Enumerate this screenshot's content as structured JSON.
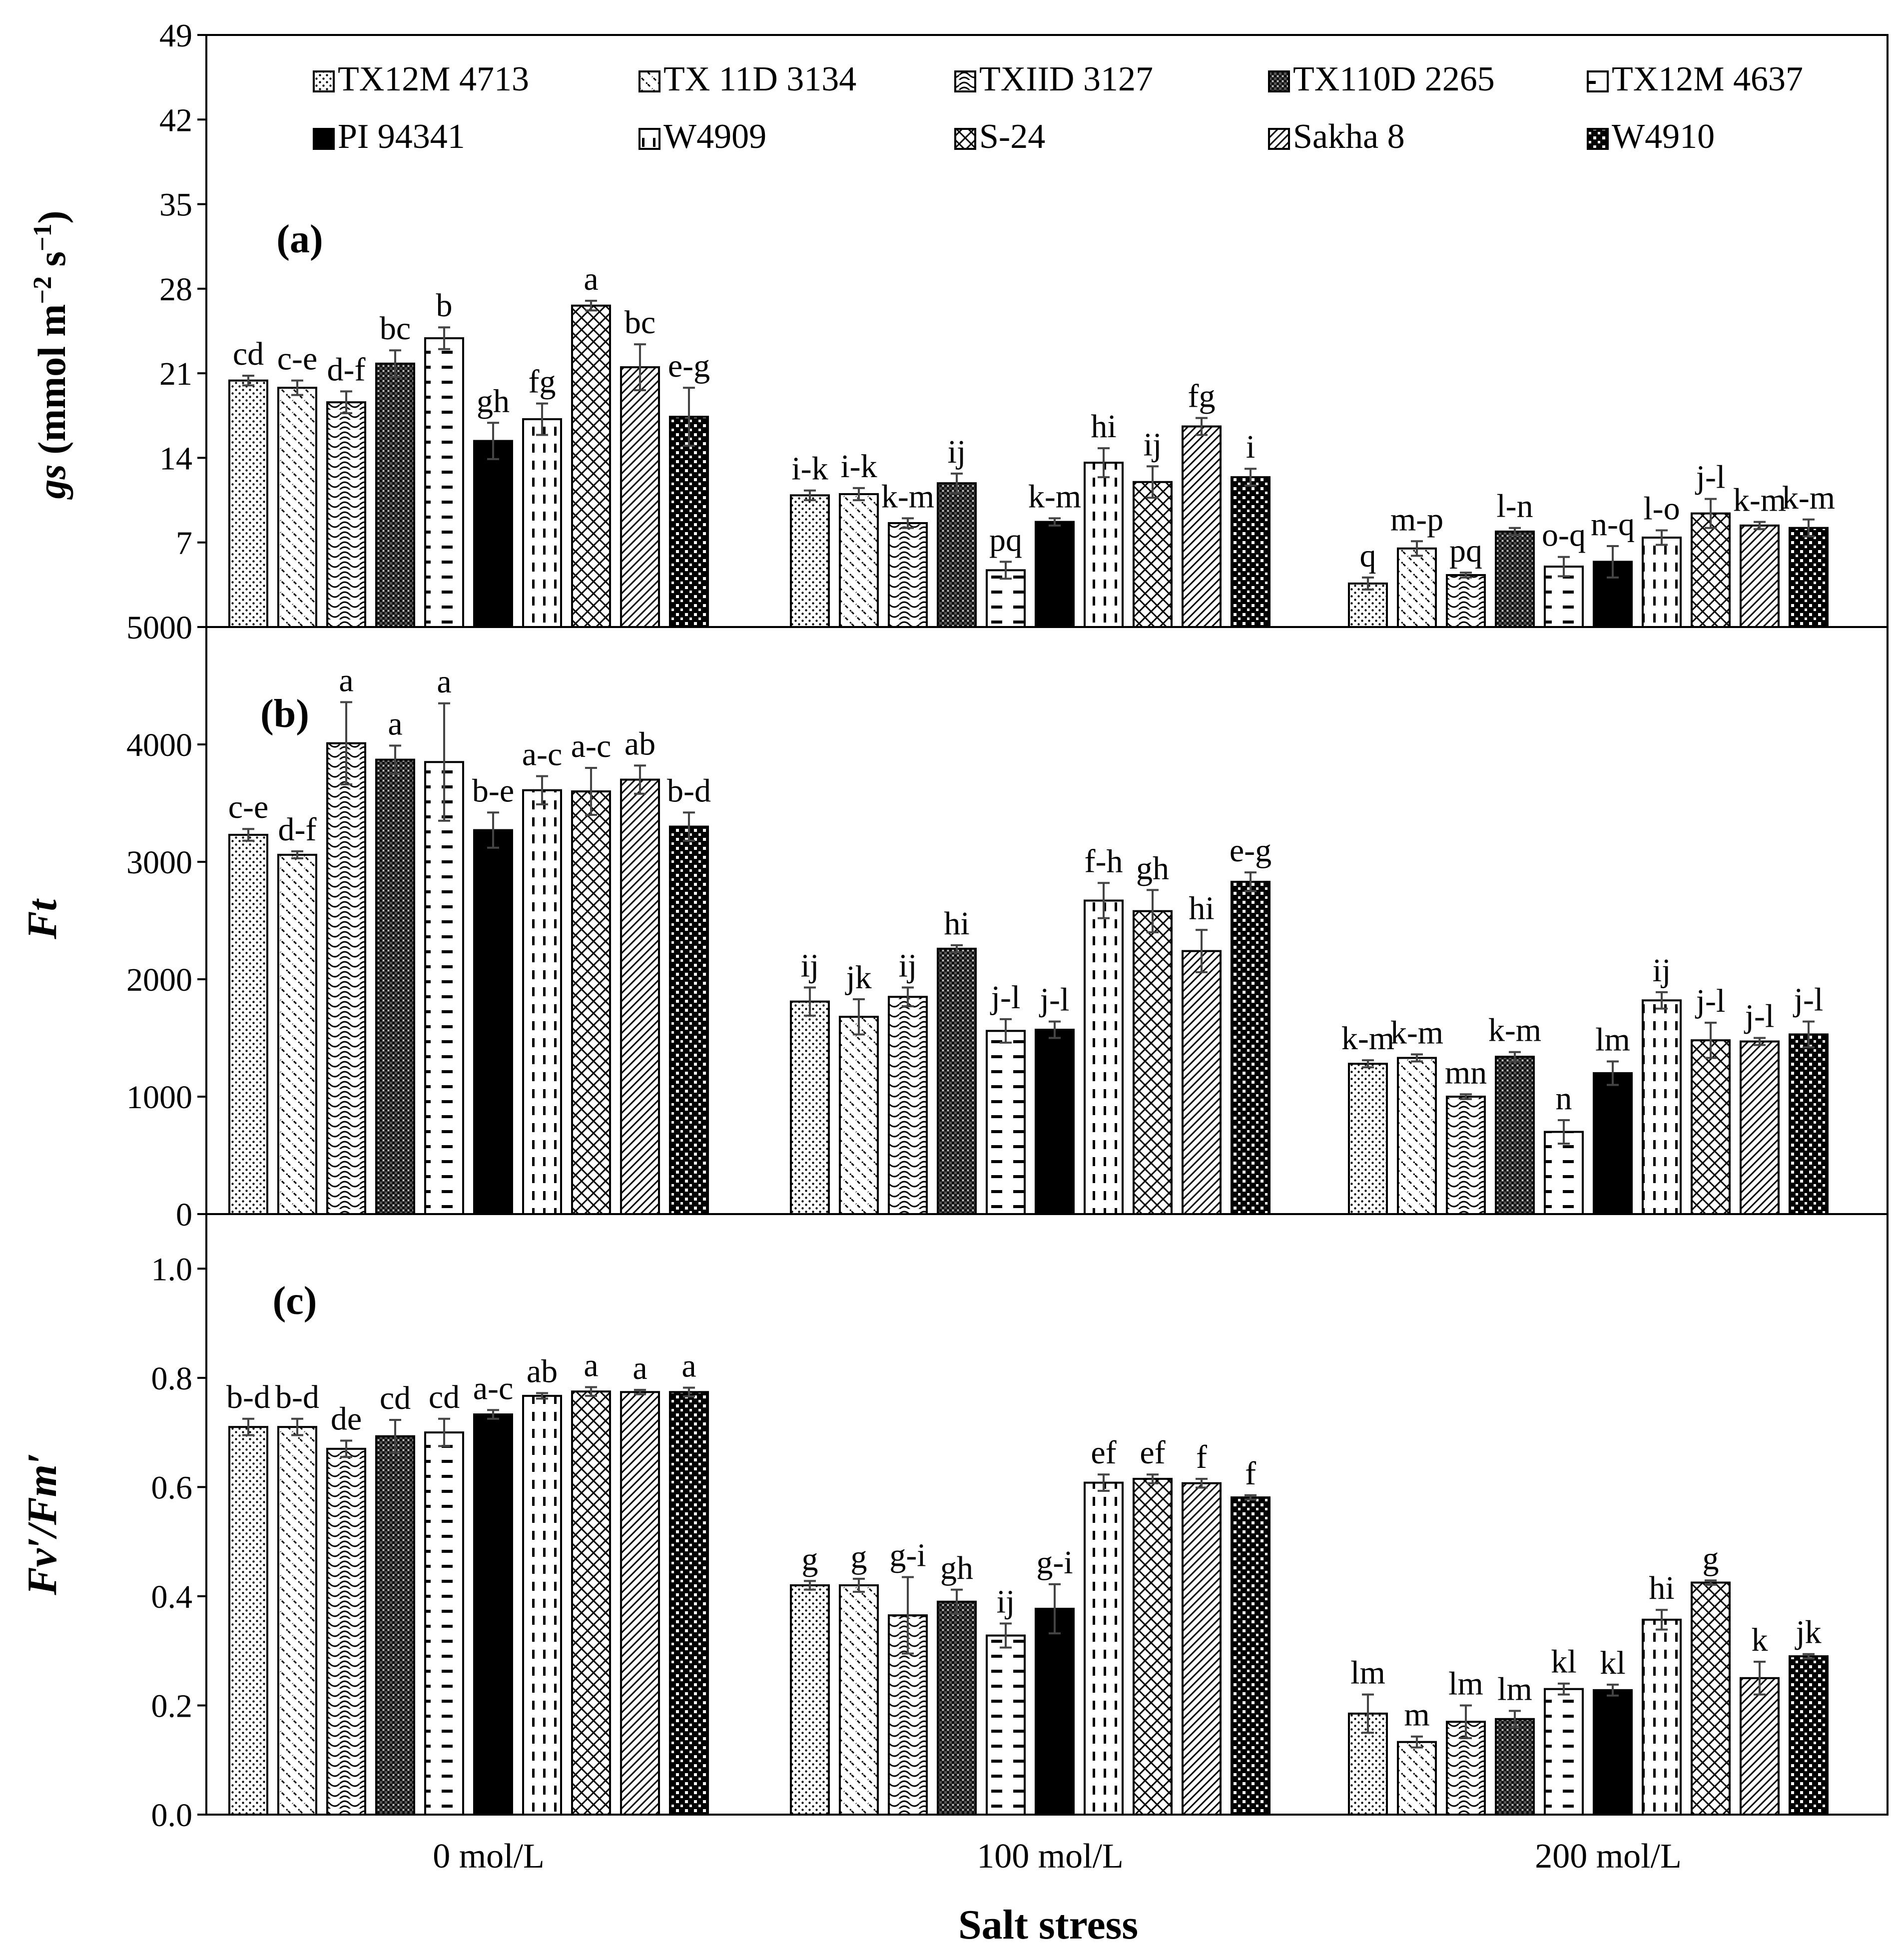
{
  "chart_data": {
    "type": "bar",
    "xlabel": "Salt stress",
    "categories": [
      "0 mol/L",
      "100 mol/L",
      "200 mol/L"
    ],
    "legend": {
      "placement": "top",
      "entries": [
        "TX12M 4713",
        "TX 11D 3134",
        "TXIID 3127",
        "TX110D 2265",
        "TX12M 4637",
        "PI 94341",
        "W4909",
        "S-24",
        "Sakha 8",
        "W4910"
      ]
    },
    "panels": [
      {
        "id": "a",
        "tag": "(a)",
        "ylabel_main": "gs",
        "ylabel_unit": " (mmol m",
        "ylabel_sup1": "−2",
        "ylabel_mid": " s",
        "ylabel_sup2": "−1",
        "ylabel_end": ")",
        "ylim": [
          0,
          49
        ],
        "yticks": [
          0,
          7,
          14,
          21,
          28,
          35,
          42,
          49
        ],
        "tick_labels": [
          "0",
          "7",
          "14",
          "21",
          "28",
          "35",
          "42",
          "49"
        ],
        "series": [
          {
            "name": "TX12M 4713",
            "values": [
              20.4,
              10.9,
              3.6
            ],
            "err": [
              0.4,
              0.4,
              0.5
            ],
            "letters": [
              "cd",
              "i-k",
              "q"
            ]
          },
          {
            "name": "TX 11D 3134",
            "values": [
              19.8,
              11.0,
              6.5
            ],
            "err": [
              0.6,
              0.5,
              0.6
            ],
            "letters": [
              "c-e",
              "i-k",
              "m-p"
            ]
          },
          {
            "name": "TXIID 3127",
            "values": [
              18.6,
              8.6,
              4.3
            ],
            "err": [
              0.9,
              0.4,
              0.2
            ],
            "letters": [
              "d-f",
              "k-m",
              "pq"
            ]
          },
          {
            "name": "TX110D 2265",
            "values": [
              21.8,
              11.9,
              7.9
            ],
            "err": [
              1.1,
              0.8,
              0.3
            ],
            "letters": [
              "bc",
              "ij",
              "l-n"
            ]
          },
          {
            "name": "TX12M 4637",
            "values": [
              23.9,
              4.7,
              5.0
            ],
            "err": [
              0.9,
              0.7,
              0.8
            ],
            "letters": [
              "b",
              "pq",
              "o-q"
            ]
          },
          {
            "name": "PI 94341",
            "values": [
              15.4,
              8.7,
              5.4
            ],
            "err": [
              1.5,
              0.3,
              1.3
            ],
            "letters": [
              "gh",
              "k-m",
              "n-q"
            ]
          },
          {
            "name": "W4909",
            "values": [
              17.2,
              13.6,
              7.4
            ],
            "err": [
              1.3,
              1.2,
              0.6
            ],
            "letters": [
              "fg",
              "hi",
              "l-o"
            ]
          },
          {
            "name": "S-24",
            "values": [
              26.6,
              12.0,
              9.4
            ],
            "err": [
              0.4,
              1.3,
              1.2
            ],
            "letters": [
              "a",
              "ij",
              "j-l"
            ]
          },
          {
            "name": "Sakha 8",
            "values": [
              21.5,
              16.6,
              8.4
            ],
            "err": [
              1.9,
              0.7,
              0.3
            ],
            "letters": [
              "bc",
              "fg",
              "k-m"
            ]
          },
          {
            "name": "W4910",
            "values": [
              17.4,
              12.4,
              8.2
            ],
            "err": [
              2.4,
              0.7,
              0.7
            ],
            "letters": [
              "e-g",
              "i",
              "k-m"
            ]
          }
        ]
      },
      {
        "id": "b",
        "tag": "(b)",
        "ylabel_main": "Ft",
        "ylim": [
          0,
          5000
        ],
        "yticks": [
          0,
          1000,
          2000,
          3000,
          4000,
          5000
        ],
        "tick_labels": [
          "0",
          "1000",
          "2000",
          "3000",
          "4000",
          "5000"
        ],
        "series": [
          {
            "name": "TX12M 4713",
            "values": [
              3230,
              1810,
              1280
            ],
            "err": [
              50,
              120,
              30
            ],
            "letters": [
              "c-e",
              "ij",
              "k-m"
            ]
          },
          {
            "name": "TX 11D 3134",
            "values": [
              3060,
              1680,
              1330
            ],
            "err": [
              30,
              150,
              30
            ],
            "letters": [
              "d-f",
              "jk",
              "k-m"
            ]
          },
          {
            "name": "TXIID 3127",
            "values": [
              4010,
              1850,
              1000
            ],
            "err": [
              350,
              80,
              20
            ],
            "letters": [
              "a",
              "ij",
              "mn"
            ]
          },
          {
            "name": "TX110D 2265",
            "values": [
              3870,
              2260,
              1340
            ],
            "err": [
              120,
              30,
              40
            ],
            "letters": [
              "a",
              "hi",
              "k-m"
            ]
          },
          {
            "name": "TX12M 4637",
            "values": [
              3850,
              1560,
              700
            ],
            "err": [
              500,
              100,
              100
            ],
            "letters": [
              "a",
              "j-l",
              "n"
            ]
          },
          {
            "name": "PI 94341",
            "values": [
              3270,
              1570,
              1200
            ],
            "err": [
              150,
              70,
              100
            ],
            "letters": [
              "b-e",
              "j-l",
              "lm"
            ]
          },
          {
            "name": "W4909",
            "values": [
              3610,
              2670,
              1820
            ],
            "err": [
              120,
              150,
              70
            ],
            "letters": [
              "a-c",
              "f-h",
              "ij"
            ]
          },
          {
            "name": "S-24",
            "values": [
              3600,
              2580,
              1480
            ],
            "err": [
              200,
              180,
              150
            ],
            "letters": [
              "a-c",
              "gh",
              "j-l"
            ]
          },
          {
            "name": "Sakha 8",
            "values": [
              3700,
              2240,
              1470
            ],
            "err": [
              120,
              180,
              30
            ],
            "letters": [
              "ab",
              "hi",
              "j-l"
            ]
          },
          {
            "name": "W4910",
            "values": [
              3300,
              2830,
              1530
            ],
            "err": [
              120,
              80,
              110
            ],
            "letters": [
              "b-d",
              "e-g",
              "j-l"
            ]
          }
        ]
      },
      {
        "id": "c",
        "tag": "(c)",
        "ylabel_main": "Fv′/Fm′",
        "ylim": [
          0,
          1.1
        ],
        "yticks": [
          0,
          0.2,
          0.4,
          0.6,
          0.8,
          1.0
        ],
        "tick_labels": [
          "0.0",
          "0.2",
          "0.4",
          "0.6",
          "0.8",
          "1.0"
        ],
        "series": [
          {
            "name": "TX12M 4713",
            "values": [
              0.71,
              0.42,
              0.185
            ],
            "err": [
              0.015,
              0.008,
              0.035
            ],
            "letters": [
              "b-d",
              "g",
              "lm"
            ]
          },
          {
            "name": "TX 11D 3134",
            "values": [
              0.71,
              0.42,
              0.133
            ],
            "err": [
              0.015,
              0.012,
              0.01
            ],
            "letters": [
              "b-d",
              "g",
              "m"
            ]
          },
          {
            "name": "TXIID 3127",
            "values": [
              0.67,
              0.365,
              0.17
            ],
            "err": [
              0.015,
              0.07,
              0.03
            ],
            "letters": [
              "de",
              "g-i",
              "lm"
            ]
          },
          {
            "name": "TX110D 2265",
            "values": [
              0.693,
              0.39,
              0.175
            ],
            "err": [
              0.03,
              0.022,
              0.015
            ],
            "letters": [
              "cd",
              "gh",
              "lm"
            ]
          },
          {
            "name": "TX12M 4637",
            "values": [
              0.7,
              0.328,
              0.23
            ],
            "err": [
              0.025,
              0.022,
              0.01
            ],
            "letters": [
              "cd",
              "ij",
              "kl"
            ]
          },
          {
            "name": "PI 94341",
            "values": [
              0.733,
              0.377,
              0.228
            ],
            "err": [
              0.008,
              0.045,
              0.01
            ],
            "letters": [
              "a-c",
              "g-i",
              "kl"
            ]
          },
          {
            "name": "W4909",
            "values": [
              0.767,
              0.608,
              0.357
            ],
            "err": [
              0.005,
              0.015,
              0.018
            ],
            "letters": [
              "ab",
              "ef",
              "hi"
            ]
          },
          {
            "name": "S-24",
            "values": [
              0.775,
              0.615,
              0.425
            ],
            "err": [
              0.008,
              0.008,
              0.004
            ],
            "letters": [
              "a",
              "ef",
              "g"
            ]
          },
          {
            "name": "Sakha 8",
            "values": [
              0.774,
              0.607,
              0.25
            ],
            "err": [
              0.004,
              0.008,
              0.03
            ],
            "letters": [
              "a",
              "f",
              "k"
            ]
          },
          {
            "name": "W4910",
            "values": [
              0.774,
              0.581,
              0.29
            ],
            "err": [
              0.008,
              0.004,
              0.004
            ],
            "letters": [
              "a",
              "f",
              "jk"
            ]
          }
        ]
      }
    ]
  }
}
